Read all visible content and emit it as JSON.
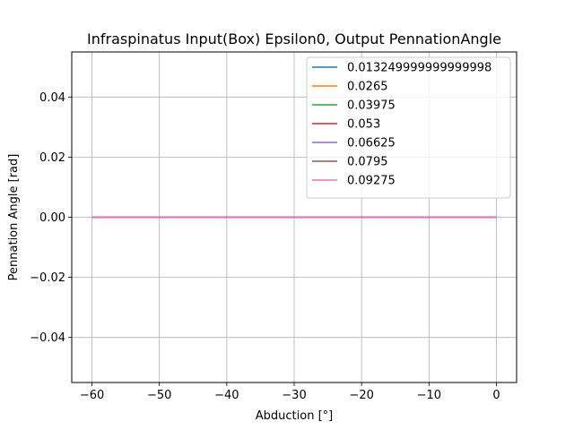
{
  "chart_data": {
    "type": "line",
    "title": "Infraspinatus Input(Box) Epsilon0, Output PennationAngle",
    "xlabel": "Abduction [°]",
    "ylabel": "Pennation Angle [rad]",
    "xlim": [
      -63,
      3
    ],
    "ylim": [
      -0.055,
      0.055
    ],
    "x_ticks": [
      -60,
      -50,
      -40,
      -30,
      -20,
      -10,
      0
    ],
    "x_tick_labels": [
      "−60",
      "−50",
      "−40",
      "−30",
      "−20",
      "−10",
      "0"
    ],
    "y_ticks": [
      -0.04,
      -0.02,
      0.0,
      0.02,
      0.04
    ],
    "y_tick_labels": [
      "−0.04",
      "−0.02",
      "0.00",
      "0.02",
      "0.04"
    ],
    "grid": true,
    "legend_position": "upper right",
    "x": [
      -60,
      0
    ],
    "series": [
      {
        "name": "0.013249999999999998",
        "color": "#1f77b4",
        "values": [
          0,
          0
        ]
      },
      {
        "name": "0.0265",
        "color": "#ff7f0e",
        "values": [
          0,
          0
        ]
      },
      {
        "name": "0.03975",
        "color": "#2ca02c",
        "values": [
          0,
          0
        ]
      },
      {
        "name": "0.053",
        "color": "#d62728",
        "values": [
          0,
          0
        ]
      },
      {
        "name": "0.06625",
        "color": "#9467bd",
        "values": [
          0,
          0
        ]
      },
      {
        "name": "0.0795",
        "color": "#8c564b",
        "values": [
          0,
          0
        ]
      },
      {
        "name": "0.09275",
        "color": "#e377c2",
        "values": [
          0,
          0
        ]
      }
    ]
  }
}
